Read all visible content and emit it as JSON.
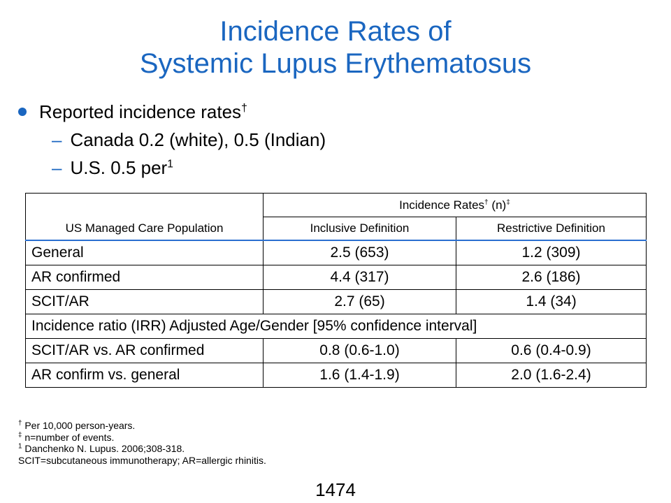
{
  "title": {
    "line1": "Incidence Rates of",
    "line2": "Systemic Lupus Erythematosus"
  },
  "bullets": {
    "main": "Reported incidence rates",
    "main_sup": "†",
    "sub1": "Canada 0.2 (white), 0.5 (Indian)",
    "sub2": "U.S. 0.5 per",
    "sub2_sup": "1",
    "dash": "–"
  },
  "table": {
    "group_header": "Incidence Rates",
    "group_header_sup1": "†",
    "group_header_mid": " (n)",
    "group_header_sup2": "‡",
    "population_header": "US Managed Care Population",
    "col_inclusive": "Inclusive Definition",
    "col_restrictive": "Restrictive Definition",
    "rows": [
      {
        "label": "General",
        "inclusive": "2.5 (653)",
        "restrictive": "1.2 (309)"
      },
      {
        "label": "AR confirmed",
        "inclusive": "4.4 (317)",
        "restrictive": "2.6 (186)"
      },
      {
        "label": "SCIT/AR",
        "inclusive": "2.7 (65)",
        "restrictive": "1.4 (34)"
      }
    ],
    "section_label": "Incidence ratio (IRR) Adjusted Age/Gender [95% confidence interval]",
    "ratio_rows": [
      {
        "label": "SCIT/AR vs. AR confirmed",
        "inclusive": "0.8 (0.6-1.0)",
        "restrictive": "0.6 (0.4-0.9)"
      },
      {
        "label": "AR confirm vs. general",
        "inclusive": "1.6 (1.4-1.9)",
        "restrictive": "2.0 (1.6-2.4)"
      }
    ]
  },
  "footnotes": {
    "f1_sup": "†",
    "f1": " Per 10,000 person-years.",
    "f2_sup": "‡",
    "f2": " n=number of events.",
    "f3_sup": "1",
    "f3": " Danchenko N. Lupus. 2006;308-318.",
    "f4": "SCIT=subcutaneous immunotherapy; AR=allergic rhinitis."
  },
  "page_number": "1474",
  "colors": {
    "accent": "#1a66c0",
    "table_rule": "#2a6fd0"
  }
}
